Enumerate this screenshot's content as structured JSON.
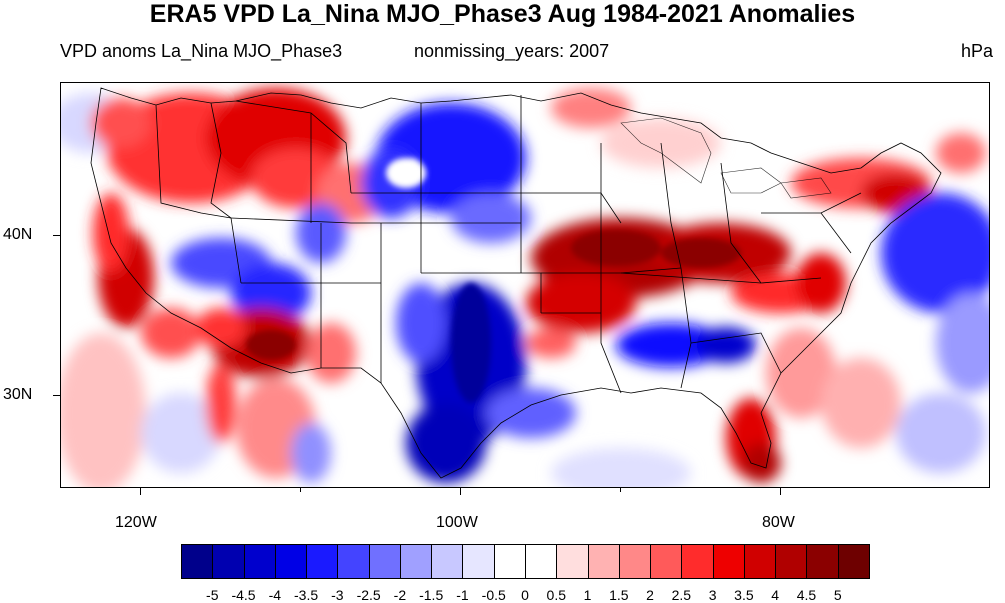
{
  "title": "ERA5 VPD La_Nina MJO_Phase3 Aug 1984-2021 Anomalies",
  "subtitle_left": "VPD anoms La_Nina MJO_Phase3",
  "subtitle_center": "nonmissing_years: 2007",
  "units": "hPa",
  "map": {
    "region": "Contiguous United States",
    "lon_labels": [
      "120W",
      "100W",
      "80W"
    ],
    "lat_labels": [
      "40N",
      "30N"
    ]
  },
  "colorbar": {
    "labels": [
      "-5",
      "-4.5",
      "-4",
      "-3.5",
      "-3",
      "-2.5",
      "-2",
      "-1.5",
      "-1",
      "-0.5",
      "0",
      "0.5",
      "1",
      "1.5",
      "2",
      "2.5",
      "3",
      "3.5",
      "4",
      "4.5",
      "5"
    ],
    "colors": [
      "#00008b",
      "#0000b0",
      "#0000cd",
      "#0000e6",
      "#1a1aff",
      "#4444ff",
      "#7070ff",
      "#a0a0ff",
      "#c8c8ff",
      "#e6e6ff",
      "#ffffff",
      "#ffffff",
      "#ffdede",
      "#ffb2b2",
      "#ff8888",
      "#ff5a5a",
      "#ff2c2c",
      "#ee0000",
      "#d00000",
      "#b00000",
      "#8b0000",
      "#6e0000"
    ]
  }
}
